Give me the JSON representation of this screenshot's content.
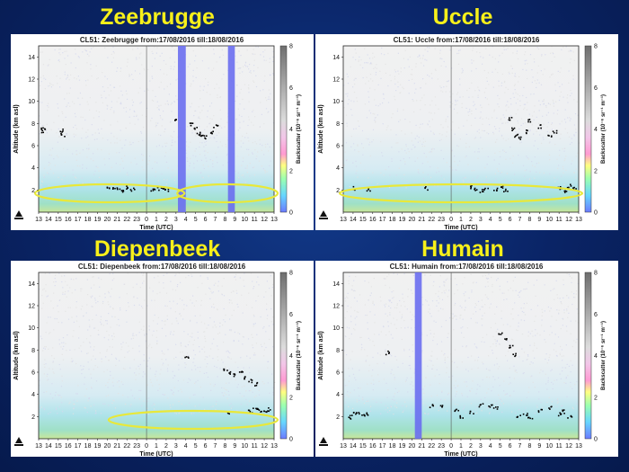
{
  "panels": [
    {
      "site": "Zeebrugge",
      "plot_title": "CL51: Zeebrugge  from:17/08/2016   till:18/08/2016"
    },
    {
      "site": "Uccle",
      "plot_title": "CL51: Uccle  from:17/08/2016   till:18/08/2016"
    },
    {
      "site": "Diepenbeek",
      "plot_title": "CL51: Diepenbeek  from:17/08/2016   till:18/08/2016"
    },
    {
      "site": "Humain",
      "plot_title": "CL51: Humain  from:17/08/2016   till:18/08/2016"
    }
  ],
  "axes": {
    "xlabel": "Time (UTC)",
    "ylabel": "Altitude (km asl)",
    "cblabel": "Backscatter (10⁻⁶ sr⁻¹ m⁻¹)",
    "xticks": [
      "13",
      "14",
      "15",
      "16",
      "17",
      "18",
      "19",
      "20",
      "21",
      "22",
      "23",
      "0",
      "1",
      "2",
      "3",
      "4",
      "5",
      "6",
      "7",
      "8",
      "9",
      "10",
      "11",
      "12",
      "13"
    ],
    "yticks": [
      "2",
      "4",
      "6",
      "8",
      "10",
      "12",
      "14"
    ],
    "cbticks": [
      "0",
      "2",
      "4",
      "6",
      "8"
    ]
  },
  "chart_data": [
    {
      "type": "heatmap",
      "title": "CL51: Zeebrugge  from:17/08/2016   till:18/08/2016",
      "xlabel": "Time (UTC)",
      "ylabel": "Altitude (km asl)",
      "ylim": [
        0,
        15
      ],
      "colorbar_range": [
        0,
        8
      ],
      "missing_data_bands_hours": [
        [
          3.2,
          4.0
        ],
        [
          8.3,
          9.0
        ]
      ],
      "cloud_points_km": [
        [
          13.2,
          7.4
        ],
        [
          13.4,
          7.5
        ],
        [
          15.3,
          7.4
        ],
        [
          15.4,
          7.0
        ],
        [
          20.0,
          2.2
        ],
        [
          20.5,
          2.1
        ],
        [
          21.0,
          2.2
        ],
        [
          21.5,
          2.0
        ],
        [
          22.0,
          2.3
        ],
        [
          22.5,
          2.1
        ],
        [
          0.5,
          2.0
        ],
        [
          1.0,
          2.2
        ],
        [
          1.5,
          2.1
        ],
        [
          2.0,
          2.0
        ],
        [
          3.0,
          8.5
        ],
        [
          4.5,
          8.0
        ],
        [
          5.0,
          7.6
        ],
        [
          5.3,
          7.2
        ],
        [
          5.6,
          7.0
        ],
        [
          6.0,
          6.8
        ],
        [
          6.5,
          7.3
        ],
        [
          7.0,
          7.8
        ]
      ],
      "highlight_ellipses_hours": [
        [
          13,
          3.5
        ],
        [
          3.5,
          13
        ]
      ]
    },
    {
      "type": "heatmap",
      "title": "CL51: Uccle  from:17/08/2016   till:18/08/2016",
      "xlabel": "Time (UTC)",
      "ylabel": "Altitude (km asl)",
      "ylim": [
        0,
        15
      ],
      "colorbar_range": [
        0,
        8
      ],
      "missing_data_bands_hours": [],
      "cloud_points_km": [
        [
          14.0,
          2.2
        ],
        [
          15.5,
          2.1
        ],
        [
          21.5,
          2.2
        ],
        [
          2.0,
          2.3
        ],
        [
          2.5,
          2.1
        ],
        [
          3.0,
          2.0
        ],
        [
          3.5,
          2.2
        ],
        [
          4.5,
          2.1
        ],
        [
          5.0,
          2.3
        ],
        [
          5.5,
          2.0
        ],
        [
          6.0,
          8.5
        ],
        [
          6.3,
          7.5
        ],
        [
          6.6,
          7.0
        ],
        [
          7.0,
          6.7
        ],
        [
          7.5,
          7.3
        ],
        [
          8.0,
          8.3
        ],
        [
          9.0,
          7.8
        ],
        [
          10.0,
          7.0
        ],
        [
          10.5,
          7.3
        ],
        [
          11.0,
          2.2
        ],
        [
          11.5,
          2.0
        ],
        [
          12.0,
          2.4
        ],
        [
          12.5,
          2.2
        ]
      ],
      "highlight_ellipses_hours": [
        [
          13,
          13
        ]
      ]
    },
    {
      "type": "heatmap",
      "title": "CL51: Diepenbeek  from:17/08/2016   till:18/08/2016",
      "xlabel": "Time (UTC)",
      "ylabel": "Altitude (km asl)",
      "ylim": [
        0,
        15
      ],
      "colorbar_range": [
        0,
        8
      ],
      "missing_data_bands_hours": [],
      "cloud_points_km": [
        [
          4.0,
          7.3
        ],
        [
          8.0,
          6.3
        ],
        [
          8.5,
          6.0
        ],
        [
          9.0,
          5.8
        ],
        [
          9.5,
          6.1
        ],
        [
          10.0,
          5.6
        ],
        [
          10.5,
          5.3
        ],
        [
          11.0,
          5.0
        ],
        [
          8.2,
          2.4
        ],
        [
          10.5,
          2.5
        ],
        [
          11.0,
          2.7
        ],
        [
          11.5,
          2.6
        ],
        [
          12.0,
          2.4
        ],
        [
          12.5,
          2.7
        ]
      ],
      "highlight_ellipses_hours": [
        [
          20.5,
          13
        ]
      ]
    },
    {
      "type": "heatmap",
      "title": "CL51: Humain  from:17/08/2016   till:18/08/2016",
      "xlabel": "Time (UTC)",
      "ylabel": "Altitude (km asl)",
      "ylim": [
        0,
        15
      ],
      "colorbar_range": [
        0,
        8
      ],
      "missing_data_bands_hours": [
        [
          20.3,
          21.0
        ]
      ],
      "cloud_points_km": [
        [
          13.5,
          2.0
        ],
        [
          14.0,
          2.3
        ],
        [
          14.5,
          2.3
        ],
        [
          15.0,
          2.2
        ],
        [
          15.5,
          2.3
        ],
        [
          17.5,
          7.8
        ],
        [
          22.0,
          3.0
        ],
        [
          23.0,
          2.9
        ],
        [
          0.5,
          2.6
        ],
        [
          1.0,
          2.0
        ],
        [
          2.0,
          2.4
        ],
        [
          3.0,
          3.1
        ],
        [
          4.0,
          3.0
        ],
        [
          4.5,
          2.8
        ],
        [
          5.0,
          9.5
        ],
        [
          5.5,
          9.0
        ],
        [
          6.0,
          8.3
        ],
        [
          6.3,
          7.6
        ],
        [
          6.8,
          2.0
        ],
        [
          7.5,
          2.3
        ],
        [
          8.0,
          2.0
        ],
        [
          9.0,
          2.6
        ],
        [
          10.0,
          2.8
        ],
        [
          11.0,
          2.3
        ],
        [
          11.5,
          2.5
        ],
        [
          12.0,
          2.1
        ]
      ],
      "highlight_ellipses_hours": []
    }
  ],
  "colors": {
    "title_yellow": "#f7f01a",
    "background": "#0a2466",
    "missing_band": "#6a6ef0",
    "cloud": "#000000",
    "ellipse": "#e8e83a"
  }
}
